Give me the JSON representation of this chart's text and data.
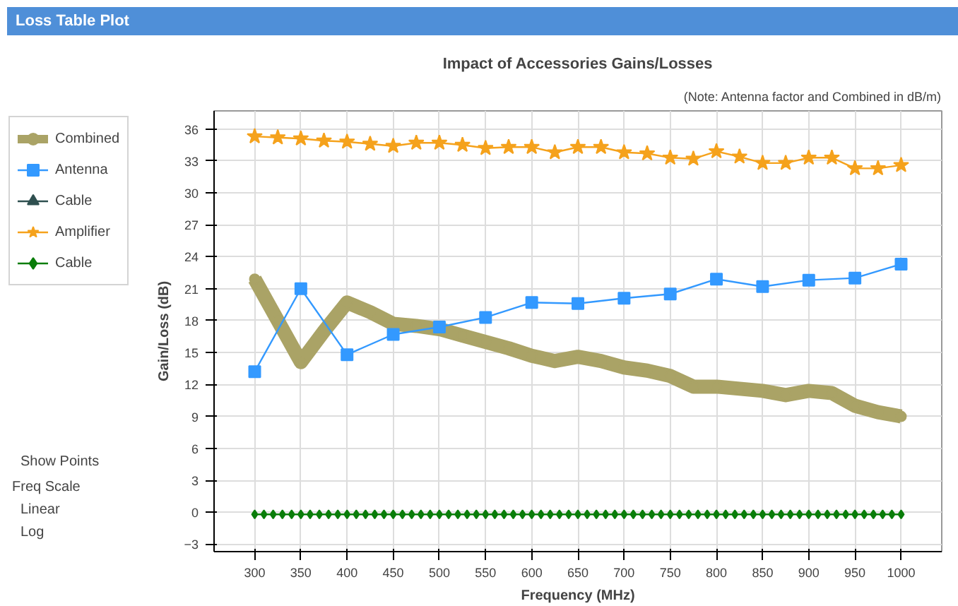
{
  "chart_data": {
    "type": "line",
    "title": "Impact of Accessories Gains/Losses",
    "subtitle": "(Note: Antenna factor and Combined in dB/m)",
    "xlabel": "Frequency (MHz)",
    "ylabel": "Gain/Loss (dB)",
    "xlim": [
      256,
      1044
    ],
    "ylim": [
      -3.7,
      37.7
    ],
    "xticks": [
      300,
      350,
      400,
      450,
      500,
      550,
      600,
      650,
      700,
      750,
      800,
      850,
      900,
      950,
      1000
    ],
    "yticks": [
      -3,
      0,
      3,
      6,
      9,
      12,
      15,
      18,
      21,
      24,
      27,
      30,
      33,
      36
    ],
    "grid": true,
    "legend": "left",
    "line_style": "solid",
    "annotations": [
      "Loss Table Plot",
      "Show Points",
      "Freq Scale",
      "Linear",
      "Log"
    ],
    "series": [
      {
        "name": "Combined",
        "color": "#aaa366",
        "marker": "circle",
        "x": [
          300,
          325,
          350,
          375,
          400,
          425,
          450,
          475,
          500,
          525,
          550,
          575,
          600,
          625,
          650,
          675,
          700,
          725,
          750,
          775,
          800,
          825,
          850,
          875,
          900,
          925,
          950,
          975,
          1000
        ],
        "values": [
          21.9,
          18,
          14.1,
          17,
          19.7,
          18.8,
          17.7,
          17.5,
          17.2,
          16.6,
          16,
          15.4,
          14.7,
          14.2,
          14.6,
          14.2,
          13.6,
          13.3,
          12.8,
          11.8,
          11.8,
          11.6,
          11.4,
          11,
          11.4,
          11.2,
          10,
          9.4,
          9
        ]
      },
      {
        "name": "Antenna",
        "color": "#3399ff",
        "marker": "square",
        "x": [
          300,
          350,
          400,
          450,
          500,
          550,
          600,
          650,
          700,
          750,
          800,
          850,
          900,
          950,
          1000
        ],
        "values": [
          13.2,
          21,
          14.8,
          16.7,
          17.4,
          18.3,
          19.7,
          19.6,
          20.1,
          20.5,
          21.9,
          21.2,
          21.8,
          22,
          23.3
        ]
      },
      {
        "name": "Cable",
        "color": "#2f5050",
        "marker": "triangle",
        "type": "line"
      },
      {
        "name": "Amplifier",
        "color": "#f5a21c",
        "marker": "star",
        "x": [
          300,
          325,
          350,
          375,
          400,
          425,
          450,
          475,
          500,
          525,
          550,
          575,
          600,
          625,
          650,
          675,
          700,
          725,
          750,
          775,
          800,
          825,
          850,
          875,
          900,
          925,
          950,
          975,
          1000
        ],
        "values": [
          35.3,
          35.2,
          35.1,
          34.9,
          34.8,
          34.6,
          34.4,
          34.7,
          34.7,
          34.5,
          34.2,
          34.3,
          34.3,
          33.8,
          34.3,
          34.3,
          33.8,
          33.7,
          33.3,
          33.2,
          33.9,
          33.4,
          32.8,
          32.8,
          33.3,
          33.3,
          32.3,
          32.3,
          32.6
        ]
      },
      {
        "name": "Cable",
        "color": "#0a7d0a",
        "marker": "diamond",
        "x": [
          300,
          310,
          320,
          330,
          340,
          350,
          360,
          370,
          380,
          390,
          400,
          410,
          420,
          430,
          440,
          450,
          460,
          470,
          480,
          490,
          500,
          510,
          520,
          530,
          540,
          550,
          560,
          570,
          580,
          590,
          600,
          610,
          620,
          630,
          640,
          650,
          660,
          670,
          680,
          690,
          700,
          710,
          720,
          730,
          740,
          750,
          760,
          770,
          780,
          790,
          800,
          810,
          820,
          830,
          840,
          850,
          860,
          870,
          880,
          890,
          900,
          910,
          920,
          930,
          940,
          950,
          960,
          970,
          980,
          990,
          1000
        ],
        "values": [
          -0.2,
          -0.2,
          -0.2,
          -0.2,
          -0.2,
          -0.2,
          -0.2,
          -0.2,
          -0.2,
          -0.2,
          -0.2,
          -0.2,
          -0.2,
          -0.2,
          -0.2,
          -0.2,
          -0.2,
          -0.2,
          -0.2,
          -0.2,
          -0.2,
          -0.2,
          -0.2,
          -0.2,
          -0.2,
          -0.2,
          -0.2,
          -0.2,
          -0.2,
          -0.2,
          -0.2,
          -0.2,
          -0.2,
          -0.2,
          -0.2,
          -0.2,
          -0.2,
          -0.2,
          -0.2,
          -0.2,
          -0.2,
          -0.2,
          -0.2,
          -0.2,
          -0.2,
          -0.2,
          -0.2,
          -0.2,
          -0.2,
          -0.2,
          -0.2,
          -0.2,
          -0.2,
          -0.2,
          -0.2,
          -0.2,
          -0.2,
          -0.2,
          -0.2,
          -0.2,
          -0.2,
          -0.2,
          -0.2,
          -0.2,
          -0.2,
          -0.2,
          -0.2,
          -0.2,
          -0.2,
          -0.2,
          -0.2
        ]
      }
    ]
  }
}
